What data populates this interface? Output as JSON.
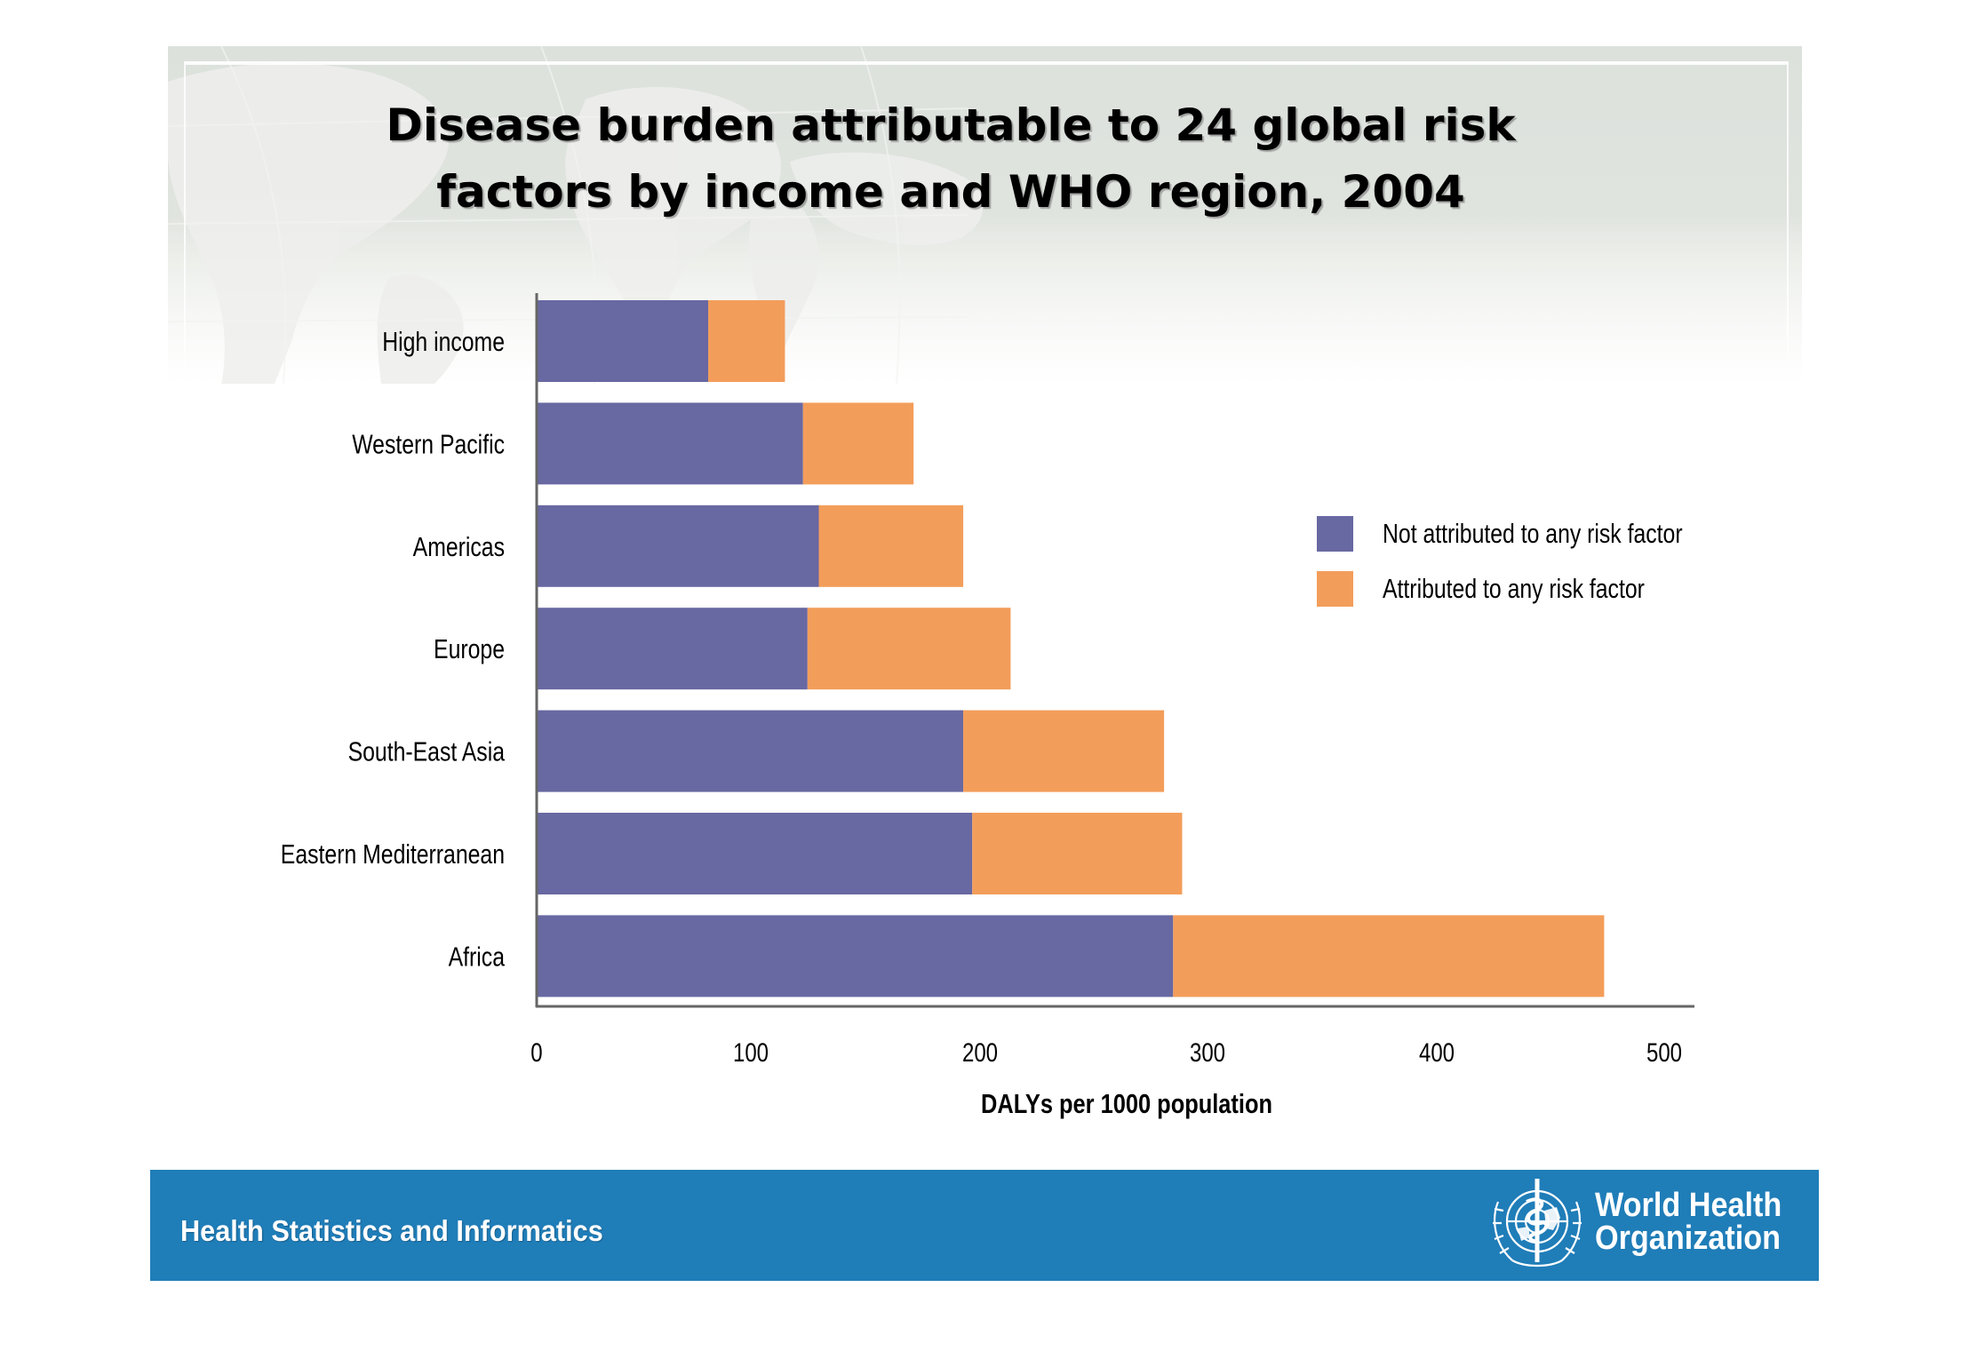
{
  "colors": {
    "not_attributed": "#6868a2",
    "attributed": "#f39d5a",
    "footer_bar": "#1f7db8",
    "axis": "#666666"
  },
  "footer": {
    "text": "Health Statistics and Informatics",
    "logo_line1": "World Health",
    "logo_line2": "Organization",
    "logo_icon": "who-emblem-icon"
  },
  "chart_data": {
    "type": "bar",
    "orientation": "horizontal",
    "stacked": true,
    "title_lines": [
      "Disease burden attributable to 24 global risk",
      "factors by income and WHO region, 2004"
    ],
    "title": "Disease burden attributable to 24 global risk factors by income and WHO region, 2004",
    "xlabel": "DALYs per 1000 population",
    "ylabel": "",
    "categories": [
      "High income",
      "Western Pacific",
      "Americas",
      "Europe",
      "South-East Asia",
      "Eastern Mediterranean",
      "Africa"
    ],
    "series": [
      {
        "name": "Not attributed to any risk factor",
        "values": [
          76,
          118,
          125,
          120,
          189,
          193,
          282
        ]
      },
      {
        "name": "Attributed to any risk factor",
        "values": [
          34,
          49,
          64,
          90,
          89,
          93,
          191
        ]
      }
    ],
    "xlim": [
      0,
      500
    ],
    "xticks": [
      0,
      100,
      200,
      300,
      400,
      500
    ],
    "xtick_labels": [
      "0",
      "100",
      "200",
      "300",
      "400",
      "500"
    ],
    "grid": false,
    "legend_position": "right"
  }
}
